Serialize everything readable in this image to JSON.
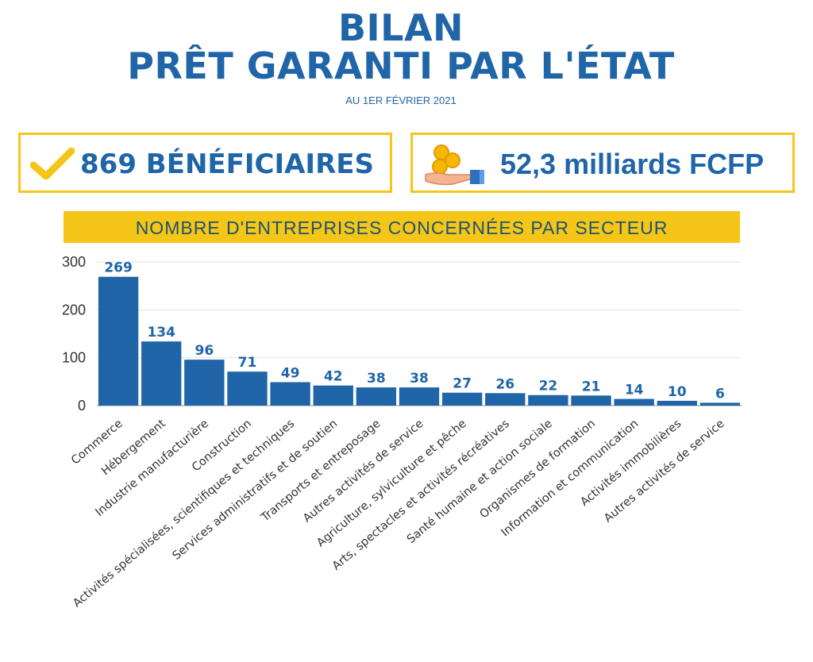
{
  "header": {
    "title_line1": "BILAN",
    "title_line2": "PRÊT GARANTI PAR L'ÉTAT",
    "subtitle": "AU 1ER FÉVRIER 2021"
  },
  "stats": {
    "beneficiaries": "869 BÉNÉFICIAIRES",
    "amount": "52,3 milliards FCFP",
    "icons": [
      "check-icon",
      "coins-hand-icon"
    ]
  },
  "colors": {
    "title": "#1f65a8",
    "accent": "#f5c518",
    "bar": "#1f65a8",
    "banner_text": "#1b5470"
  },
  "chart_data": {
    "type": "bar",
    "title": "NOMBRE D'ENTREPRISES CONCERNÉES PAR SECTEUR",
    "categories": [
      "Commerce",
      "Hébergement",
      "Industrie manufacturière",
      "Construction",
      "Activités spécialisées, scientifiques et techniques",
      "Services administratifs et de soutien",
      "Transports et entreposage",
      "Autres activités de service",
      "Agriculture, sylviculture et pêche",
      "Arts, spectacles et activités récréatives",
      "Santé humaine et action sociale",
      "Organismes de formation",
      "Information et communication",
      "Activités immobilières",
      "Autres activités de service"
    ],
    "values": [
      269,
      134,
      96,
      71,
      49,
      42,
      38,
      38,
      27,
      26,
      22,
      21,
      14,
      10,
      6
    ],
    "yticks": [
      0,
      100,
      200,
      300
    ],
    "ylim": [
      0,
      300
    ],
    "grid": true,
    "data_labels": true
  }
}
